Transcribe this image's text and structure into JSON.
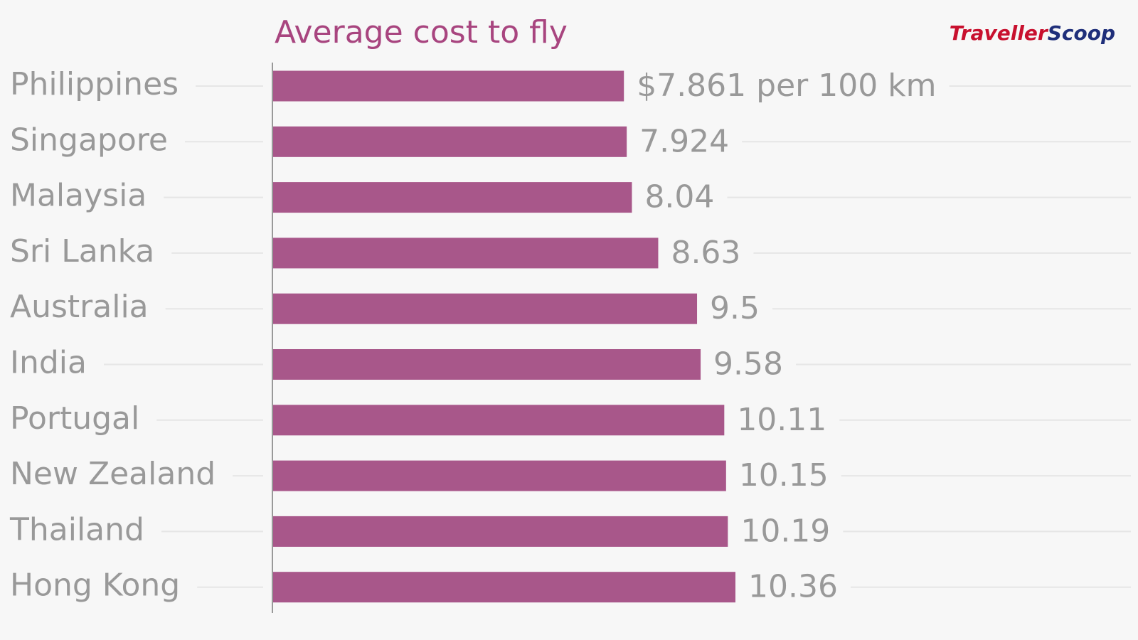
{
  "chart_data": {
    "type": "bar",
    "orientation": "horizontal",
    "title": "Average cost to fly",
    "categories": [
      "Philippines",
      "Singapore",
      "Malaysia",
      "Sri Lanka",
      "Australia",
      "India",
      "Portugal",
      "New Zealand",
      "Thailand",
      "Hong Kong"
    ],
    "values": [
      7.861,
      7.924,
      8.04,
      8.63,
      9.5,
      9.58,
      10.11,
      10.15,
      10.19,
      10.36
    ],
    "value_labels": [
      "$7.861 per 100 km",
      "7.924",
      "8.04",
      "8.63",
      "9.5",
      "9.58",
      "10.11",
      "10.15",
      "10.19",
      "10.36"
    ],
    "color": "#a8578a"
  },
  "logo": [
    "Traveller",
    "Scoop"
  ]
}
